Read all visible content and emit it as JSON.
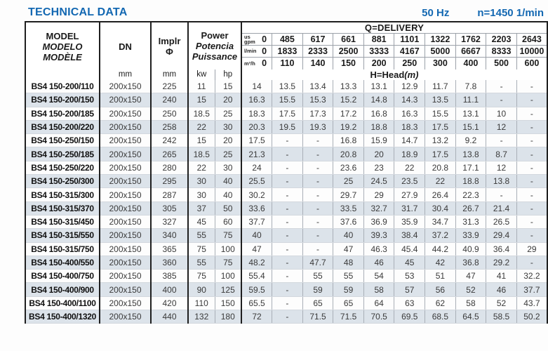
{
  "page": {
    "title": "TECHNICAL DATA",
    "frequency": "50 Hz",
    "speed": "n=1450 1/min"
  },
  "colors": {
    "accent_blue": "#1368b2",
    "row_shade": "#dce3ea",
    "grid_dark": "#1f1f1f",
    "grid_light": "#a9afb7"
  },
  "table": {
    "header": {
      "model_lines": [
        "MODEL",
        "MODELO",
        "MODÈLE"
      ],
      "dn": {
        "label": "DN",
        "unit": "mm"
      },
      "impeller": {
        "label": "Implr",
        "symbol": "Φ",
        "unit": "mm"
      },
      "power": {
        "lines": [
          "Power",
          "Potencia",
          "Puissance"
        ],
        "unit_kw": "kw",
        "unit_hp": "hp"
      },
      "delivery_title": "Q=DELIVERY",
      "head_label": "H=Head",
      "head_unit": "(m)",
      "flow_rows": [
        {
          "unit_lines": [
            "us",
            "gpm"
          ],
          "values": [
            "0",
            "485",
            "617",
            "661",
            "881",
            "1101",
            "1322",
            "1762",
            "2203",
            "2643"
          ]
        },
        {
          "unit_lines": [
            "l/min"
          ],
          "values": [
            "0",
            "1833",
            "2333",
            "2500",
            "3333",
            "4167",
            "5000",
            "6667",
            "8333",
            "10000"
          ]
        },
        {
          "unit_lines": [
            "m³/h"
          ],
          "values": [
            "0",
            "110",
            "140",
            "150",
            "200",
            "250",
            "300",
            "400",
            "500",
            "600"
          ]
        }
      ]
    },
    "rows": [
      {
        "model": "BS4 150-200/110",
        "dn": "200x150",
        "implr": "225",
        "kw": "11",
        "hp": "15",
        "head": [
          "14",
          "13.5",
          "13.4",
          "13.3",
          "13.1",
          "12.9",
          "11.7",
          "7.8",
          "-",
          "-"
        ]
      },
      {
        "model": "BS4 150-200/150",
        "dn": "200x150",
        "implr": "240",
        "kw": "15",
        "hp": "20",
        "head": [
          "16.3",
          "15.5",
          "15.3",
          "15.2",
          "14.8",
          "14.3",
          "13.5",
          "11.1",
          "-",
          "-"
        ]
      },
      {
        "model": "BS4 150-200/185",
        "dn": "200x150",
        "implr": "250",
        "kw": "18.5",
        "hp": "25",
        "head": [
          "18.3",
          "17.5",
          "17.3",
          "17.2",
          "16.8",
          "16.3",
          "15.5",
          "13.1",
          "10",
          "-"
        ]
      },
      {
        "model": "BS4 150-200/220",
        "dn": "200x150",
        "implr": "258",
        "kw": "22",
        "hp": "30",
        "head": [
          "20.3",
          "19.5",
          "19.3",
          "19.2",
          "18.8",
          "18.3",
          "17.5",
          "15.1",
          "12",
          "-"
        ]
      },
      {
        "model": "BS4 150-250/150",
        "dn": "200x150",
        "implr": "242",
        "kw": "15",
        "hp": "20",
        "head": [
          "17.5",
          "-",
          "-",
          "16.8",
          "15.9",
          "14.7",
          "13.2",
          "9.2",
          "-",
          "-"
        ]
      },
      {
        "model": "BS4 150-250/185",
        "dn": "200x150",
        "implr": "265",
        "kw": "18.5",
        "hp": "25",
        "head": [
          "21.3",
          "-",
          "-",
          "20.8",
          "20",
          "18.9",
          "17.5",
          "13.8",
          "8.7",
          "-"
        ]
      },
      {
        "model": "BS4 150-250/220",
        "dn": "200x150",
        "implr": "280",
        "kw": "22",
        "hp": "30",
        "head": [
          "24",
          "-",
          "-",
          "23.6",
          "23",
          "22",
          "20.8",
          "17.1",
          "12",
          "-"
        ]
      },
      {
        "model": "BS4 150-250/300",
        "dn": "200x150",
        "implr": "295",
        "kw": "30",
        "hp": "40",
        "head": [
          "25.5",
          "-",
          "-",
          "25",
          "24.5",
          "23.5",
          "22",
          "18.8",
          "13.8",
          "-"
        ]
      },
      {
        "model": "BS4 150-315/300",
        "dn": "200x150",
        "implr": "287",
        "kw": "30",
        "hp": "40",
        "head": [
          "30.2",
          "-",
          "-",
          "29.7",
          "29",
          "27.9",
          "26.4",
          "22.3",
          "-",
          "-"
        ]
      },
      {
        "model": "BS4 150-315/370",
        "dn": "200x150",
        "implr": "305",
        "kw": "37",
        "hp": "50",
        "head": [
          "33.6",
          "-",
          "-",
          "33.5",
          "32.7",
          "31.7",
          "30.4",
          "26.7",
          "21.4",
          "-"
        ]
      },
      {
        "model": "BS4 150-315/450",
        "dn": "200x150",
        "implr": "327",
        "kw": "45",
        "hp": "60",
        "head": [
          "37.7",
          "-",
          "-",
          "37.6",
          "36.9",
          "35.9",
          "34.7",
          "31.3",
          "26.5",
          "-"
        ]
      },
      {
        "model": "BS4 150-315/550",
        "dn": "200x150",
        "implr": "340",
        "kw": "55",
        "hp": "75",
        "head": [
          "40",
          "-",
          "-",
          "40",
          "39.3",
          "38.4",
          "37.2",
          "33.9",
          "29.4",
          "-"
        ]
      },
      {
        "model": "BS4 150-315/750",
        "dn": "200x150",
        "implr": "365",
        "kw": "75",
        "hp": "100",
        "head": [
          "47",
          "-",
          "-",
          "47",
          "46.3",
          "45.4",
          "44.2",
          "40.9",
          "36.4",
          "29"
        ]
      },
      {
        "model": "BS4 150-400/550",
        "dn": "200x150",
        "implr": "360",
        "kw": "55",
        "hp": "75",
        "head": [
          "48.2",
          "-",
          "47.7",
          "48",
          "46",
          "45",
          "42",
          "36.8",
          "29.2",
          "-"
        ]
      },
      {
        "model": "BS4 150-400/750",
        "dn": "200x150",
        "implr": "385",
        "kw": "75",
        "hp": "100",
        "head": [
          "55.4",
          "-",
          "55",
          "55",
          "54",
          "53",
          "51",
          "47",
          "41",
          "32.2"
        ]
      },
      {
        "model": "BS4 150-400/900",
        "dn": "200x150",
        "implr": "400",
        "kw": "90",
        "hp": "125",
        "head": [
          "59.5",
          "-",
          "59",
          "59",
          "58",
          "57",
          "56",
          "52",
          "46",
          "37.7"
        ]
      },
      {
        "model": "BS4 150-400/1100",
        "dn": "200x150",
        "implr": "420",
        "kw": "110",
        "hp": "150",
        "head": [
          "65.5",
          "-",
          "65",
          "65",
          "64",
          "63",
          "62",
          "58",
          "52",
          "43.7"
        ]
      },
      {
        "model": "BS4 150-400/1320",
        "dn": "200x150",
        "implr": "440",
        "kw": "132",
        "hp": "180",
        "head": [
          "72",
          "-",
          "71.5",
          "71.5",
          "70.5",
          "69.5",
          "68.5",
          "64.5",
          "58.5",
          "50.2"
        ]
      }
    ]
  }
}
